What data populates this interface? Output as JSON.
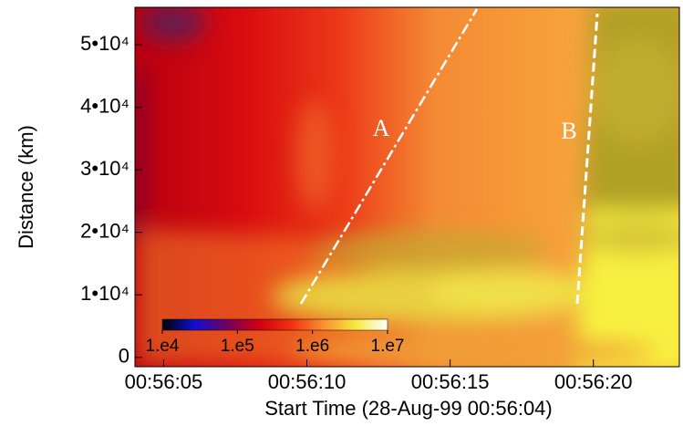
{
  "chart_data": {
    "type": "heatmap",
    "xlabel": "Start Time (28-Aug-99 00:56:04)",
    "ylabel": "Distance (km)",
    "xlim": [
      "00:56:04",
      "00:56:23"
    ],
    "xticks": [
      "00:56:05",
      "00:56:10",
      "00:56:15",
      "00:56:20"
    ],
    "ylim": [
      -1500,
      56000
    ],
    "yticks": [
      0,
      {
        "value": 10000,
        "label": "1•10⁴"
      },
      {
        "value": 20000,
        "label": "2•10⁴"
      },
      {
        "value": 30000,
        "label": "3•10⁴"
      },
      {
        "value": 40000,
        "label": "4•10⁴"
      },
      {
        "value": 50000,
        "label": "5•10⁴"
      }
    ],
    "colorbar": {
      "log": true,
      "lim": [
        10000,
        10000000
      ],
      "ticks": [
        {
          "value": 10000,
          "label": "1.e4"
        },
        {
          "value": 100000,
          "label": "1.e5"
        },
        {
          "value": 1000000,
          "label": "1.e6"
        },
        {
          "value": 10000000,
          "label": "1.e7"
        }
      ],
      "colors": [
        "#000000",
        "#1010d0",
        "#700060",
        "#d00010",
        "#f03010",
        "#f89030",
        "#f8e840",
        "#ffffff"
      ]
    },
    "annotations": [
      {
        "text": "A"
      },
      {
        "text": "B"
      }
    ]
  }
}
